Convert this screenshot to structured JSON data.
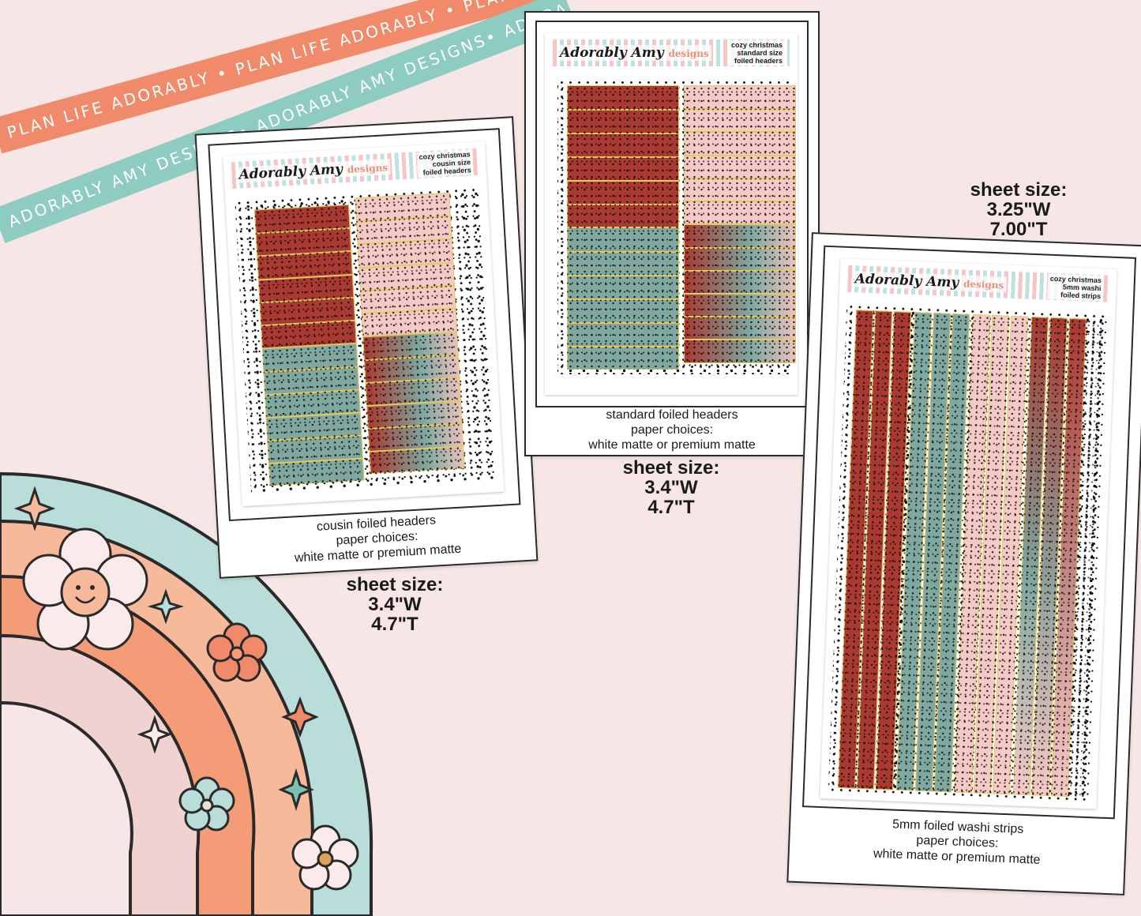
{
  "ribbons": {
    "orange_text": "PLAN LIFE ADORABLY • PLAN LIFE ADORABLY • PLAN LIFE ADORABLY •",
    "teal_text": "ADORABLY AMY DESIGNS• ADORABLY AMY DESIGNS• ADORABLY AMY DESIGNS •"
  },
  "brand": {
    "logo": "Adorably Amy",
    "logo_sub": "designs"
  },
  "products": [
    {
      "sheet_title": [
        "cozy christmas",
        "cousin size",
        "foiled headers"
      ],
      "caption": [
        "cousin foiled headers",
        "paper choices:",
        "white matte or premium matte"
      ],
      "size_label": "sheet size:",
      "width": "3.4\"W",
      "height": "4.7\"T"
    },
    {
      "sheet_title": [
        "cozy christmas",
        "standard size",
        "foiled headers"
      ],
      "caption": [
        "standard foiled headers",
        "paper choices:",
        "white matte or premium matte"
      ],
      "size_label": "sheet size:",
      "width": "3.4\"W",
      "height": "4.7\"T"
    },
    {
      "sheet_title": [
        "cozy christmas",
        "5mm washi",
        "foiled strips"
      ],
      "caption": [
        "5mm foiled washi strips",
        "paper choices:",
        "white matte or premium matte"
      ],
      "size_label": "sheet size:",
      "width": "3.25\"W",
      "height": "7.00\"T"
    }
  ],
  "colors": {
    "background": "#f6e6e6",
    "red": "#a93a32",
    "pink": "#f5c9c6",
    "sage": "#7fa8a0",
    "foil": "#e8c85a",
    "rainbow_teal": "#b9ddd8",
    "rainbow_peach": "#f6b99a",
    "rainbow_orange": "#f39c77",
    "rainbow_pink": "#f0d2d0"
  }
}
